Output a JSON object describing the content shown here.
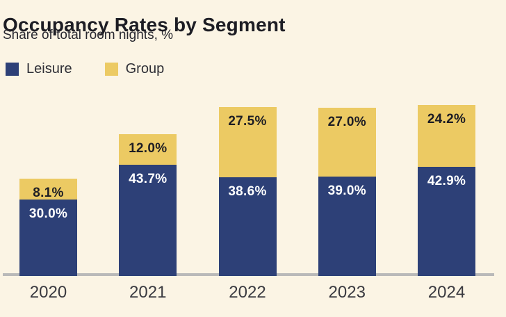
{
  "header": {
    "title": "Occupancy Rates by Segment",
    "subtitle": "Share of total room nights, %"
  },
  "legend": {
    "items": [
      {
        "label": "Leisure",
        "color": "#2d4077"
      },
      {
        "label": "Group",
        "color": "#ecca63"
      }
    ]
  },
  "chart_data": {
    "type": "bar",
    "stacked": true,
    "title": "Occupancy Rates by Segment",
    "subtitle": "Share of total room nights, %",
    "categories": [
      "2020",
      "2021",
      "2022",
      "2023",
      "2024"
    ],
    "series": [
      {
        "name": "Leisure",
        "color": "#2d4077",
        "label_color": "#ffffff",
        "values": [
          30.0,
          43.7,
          38.6,
          39.0,
          42.9
        ],
        "labels": [
          "30.0%",
          "43.7%",
          "38.6%",
          "39.0%",
          "42.9%"
        ]
      },
      {
        "name": "Group",
        "color": "#ecca63",
        "label_color": "#1d1d24",
        "values": [
          8.1,
          12.0,
          27.5,
          27.0,
          24.2
        ],
        "labels": [
          "8.1%",
          "12.0%",
          "27.5%",
          "27.0%",
          "24.2%"
        ]
      }
    ],
    "value_suffix": "%",
    "ylim": [
      0,
      72.7
    ],
    "grid": false,
    "legend_position": "top-left",
    "axis_line_color": "#b9b9b9",
    "background_color": "#fbf4e4"
  }
}
